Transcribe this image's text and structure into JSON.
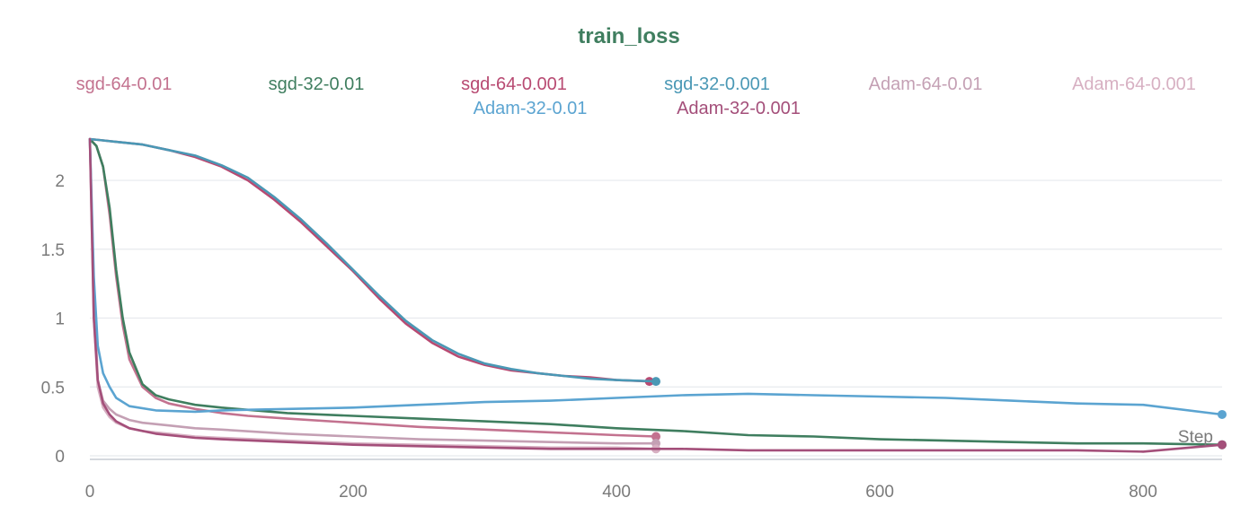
{
  "chart_data": {
    "type": "line",
    "title": "train_loss",
    "xlabel": "Step",
    "ylabel": "",
    "xlim": [
      0,
      860
    ],
    "ylim": [
      0,
      2.3
    ],
    "xticks": [
      0,
      200,
      400,
      600,
      800
    ],
    "yticks": [
      0,
      0.5,
      1,
      1.5,
      2
    ],
    "grid": true,
    "legend_placement": "top",
    "series": [
      {
        "name": "sgd-64-0.01",
        "color": "#c3728f",
        "x": [
          0,
          5,
          10,
          15,
          20,
          25,
          30,
          40,
          50,
          60,
          80,
          100,
          120,
          150,
          200,
          250,
          300,
          350,
          400,
          430
        ],
        "y": [
          2.3,
          2.25,
          2.1,
          1.75,
          1.3,
          0.95,
          0.7,
          0.5,
          0.42,
          0.38,
          0.34,
          0.31,
          0.29,
          0.27,
          0.24,
          0.21,
          0.19,
          0.17,
          0.15,
          0.14
        ]
      },
      {
        "name": "sgd-32-0.01",
        "color": "#3f7e5f",
        "x": [
          0,
          5,
          10,
          15,
          20,
          25,
          30,
          40,
          50,
          60,
          80,
          100,
          150,
          200,
          250,
          300,
          350,
          400,
          450,
          500,
          550,
          600,
          650,
          700,
          750,
          800,
          860
        ],
        "y": [
          2.3,
          2.25,
          2.1,
          1.8,
          1.35,
          1.0,
          0.75,
          0.52,
          0.44,
          0.41,
          0.37,
          0.35,
          0.31,
          0.29,
          0.27,
          0.25,
          0.23,
          0.2,
          0.18,
          0.15,
          0.14,
          0.12,
          0.11,
          0.1,
          0.09,
          0.09,
          0.08
        ]
      },
      {
        "name": "sgd-64-0.001",
        "color": "#b84a72",
        "x": [
          0,
          10,
          20,
          40,
          60,
          80,
          100,
          120,
          140,
          160,
          180,
          200,
          220,
          240,
          260,
          280,
          300,
          320,
          340,
          360,
          380,
          400,
          425
        ],
        "y": [
          2.3,
          2.29,
          2.28,
          2.26,
          2.22,
          2.17,
          2.1,
          2.0,
          1.86,
          1.7,
          1.52,
          1.34,
          1.14,
          0.96,
          0.82,
          0.72,
          0.66,
          0.62,
          0.6,
          0.58,
          0.57,
          0.55,
          0.54
        ]
      },
      {
        "name": "sgd-32-0.001",
        "color": "#4a98b5",
        "x": [
          0,
          10,
          20,
          40,
          60,
          80,
          100,
          120,
          140,
          160,
          180,
          200,
          220,
          240,
          260,
          280,
          300,
          320,
          340,
          360,
          380,
          400,
          430
        ],
        "y": [
          2.3,
          2.29,
          2.28,
          2.26,
          2.22,
          2.18,
          2.11,
          2.02,
          1.88,
          1.72,
          1.54,
          1.35,
          1.16,
          0.98,
          0.84,
          0.74,
          0.67,
          0.63,
          0.6,
          0.58,
          0.56,
          0.55,
          0.54
        ]
      },
      {
        "name": "Adam-64-0.01",
        "color": "#c4a0b4",
        "x": [
          0,
          3,
          6,
          10,
          15,
          20,
          30,
          40,
          60,
          80,
          100,
          150,
          200,
          250,
          300,
          350,
          400,
          430
        ],
        "y": [
          2.3,
          1.2,
          0.55,
          0.4,
          0.34,
          0.3,
          0.26,
          0.24,
          0.22,
          0.2,
          0.19,
          0.16,
          0.14,
          0.12,
          0.11,
          0.1,
          0.09,
          0.09
        ]
      },
      {
        "name": "Adam-64-0.001",
        "color": "#d7b0c2",
        "x": [
          0,
          3,
          6,
          10,
          15,
          20,
          30,
          40,
          60,
          80,
          100,
          150,
          200,
          250,
          300,
          350,
          400,
          430
        ],
        "y": [
          2.3,
          1.0,
          0.5,
          0.35,
          0.28,
          0.24,
          0.2,
          0.18,
          0.16,
          0.14,
          0.13,
          0.11,
          0.09,
          0.08,
          0.07,
          0.06,
          0.06,
          0.05
        ]
      },
      {
        "name": "Adam-32-0.01",
        "color": "#5ba4d1",
        "x": [
          0,
          3,
          6,
          10,
          15,
          20,
          30,
          50,
          80,
          100,
          150,
          200,
          250,
          300,
          350,
          400,
          450,
          500,
          550,
          600,
          650,
          700,
          750,
          800,
          860
        ],
        "y": [
          2.3,
          1.3,
          0.8,
          0.6,
          0.5,
          0.42,
          0.36,
          0.33,
          0.32,
          0.33,
          0.34,
          0.35,
          0.37,
          0.39,
          0.4,
          0.42,
          0.44,
          0.45,
          0.44,
          0.43,
          0.42,
          0.4,
          0.38,
          0.37,
          0.3
        ]
      },
      {
        "name": "Adam-32-0.001",
        "color": "#a44f7a",
        "x": [
          0,
          3,
          6,
          10,
          15,
          20,
          30,
          50,
          80,
          100,
          150,
          200,
          250,
          300,
          350,
          400,
          450,
          500,
          550,
          600,
          650,
          700,
          750,
          800,
          860
        ],
        "y": [
          2.3,
          1.0,
          0.55,
          0.38,
          0.3,
          0.25,
          0.2,
          0.16,
          0.13,
          0.12,
          0.1,
          0.08,
          0.07,
          0.06,
          0.05,
          0.05,
          0.05,
          0.04,
          0.04,
          0.04,
          0.04,
          0.04,
          0.04,
          0.03,
          0.08
        ]
      }
    ]
  }
}
